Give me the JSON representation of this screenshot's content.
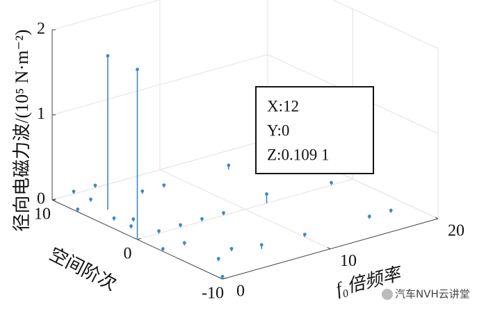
{
  "chart_data": {
    "type": "stem3d",
    "zlabel": "径向电磁力波/(10⁵ N·m⁻²)",
    "ylabel": "空间阶次",
    "xlabel": "f₀倍频率",
    "color": "#3f86c6",
    "xlim": [
      0,
      20
    ],
    "xticks": [
      0,
      10,
      20
    ],
    "ylim": [
      -10,
      10
    ],
    "yticks": [
      10,
      0,
      -10
    ],
    "zlim": [
      0,
      2
    ],
    "zticks": [
      0,
      1,
      2
    ],
    "grid": true,
    "series": [
      {
        "x": [
          0,
          2,
          12,
          2,
          4,
          0,
          2,
          1,
          1,
          2,
          6,
          8,
          2,
          4,
          2,
          0,
          6,
          8,
          4,
          2,
          0,
          6,
          14,
          20,
          18,
          16,
          18,
          10
        ],
        "y": [
          0,
          6,
          0,
          10,
          10,
          7,
          8,
          4,
          2,
          3,
          7,
          7,
          0,
          0,
          -3,
          -3,
          0,
          0,
          -6,
          -7,
          -10,
          -7,
          7,
          7,
          0,
          -7,
          -7,
          -7
        ],
        "z": [
          2.0,
          1.81,
          0.1091,
          0.03,
          0.03,
          0.03,
          0.03,
          0.03,
          0.03,
          0.03,
          0.03,
          0.03,
          0.03,
          0.03,
          0.03,
          0.03,
          0.03,
          0.03,
          0.03,
          0.03,
          0.03,
          0.05,
          0.05,
          0.05,
          0.03,
          0.03,
          0.03,
          0.03
        ]
      }
    ],
    "datatip": {
      "lines": [
        "X:12",
        "Y:0",
        "Z:0.109 1"
      ]
    },
    "watermark": "汽车NVH云讲堂"
  }
}
